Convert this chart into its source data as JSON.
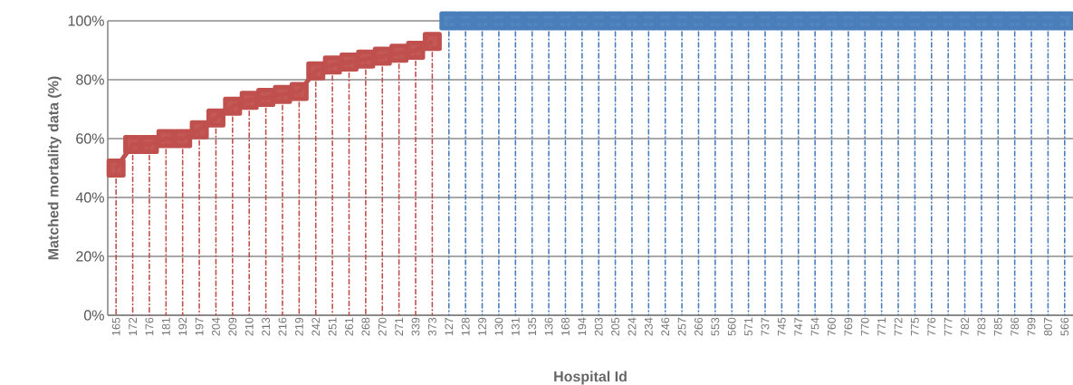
{
  "chart_data": {
    "type": "line",
    "xlabel": "Hospital Id",
    "ylabel": "Matched mortality data (%)",
    "categories": [
      "165",
      "172",
      "176",
      "181",
      "192",
      "197",
      "204",
      "209",
      "210",
      "213",
      "216",
      "219",
      "242",
      "251",
      "261",
      "268",
      "270",
      "271",
      "339",
      "373",
      "127",
      "128",
      "129",
      "130",
      "131",
      "135",
      "136",
      "168",
      "194",
      "203",
      "205",
      "224",
      "234",
      "246",
      "257",
      "266",
      "553",
      "560",
      "571",
      "737",
      "745",
      "747",
      "754",
      "760",
      "769",
      "770",
      "771",
      "772",
      "775",
      "776",
      "777",
      "782",
      "783",
      "785",
      "786",
      "799",
      "807",
      "566"
    ],
    "series": [
      {
        "color": "#c0504d",
        "values": [
          50,
          58,
          58,
          60,
          60,
          63,
          67,
          71,
          73,
          74,
          75,
          76,
          83,
          85,
          86,
          87,
          88,
          89,
          90,
          93,
          null,
          null,
          null,
          null,
          null,
          null,
          null,
          null,
          null,
          null,
          null,
          null,
          null,
          null,
          null,
          null,
          null,
          null,
          null,
          null,
          null,
          null,
          null,
          null,
          null,
          null,
          null,
          null,
          null,
          null,
          null,
          null,
          null,
          null,
          null,
          null,
          null,
          null
        ],
        "errors": [
          [
            0,
            50
          ],
          [
            0,
            58
          ],
          [
            0,
            58
          ],
          [
            0,
            60
          ],
          [
            0,
            60
          ],
          [
            0,
            63
          ],
          [
            0,
            67
          ],
          [
            0,
            71
          ],
          [
            0,
            73
          ],
          [
            0,
            74
          ],
          [
            0,
            75
          ],
          [
            0,
            76
          ],
          [
            0,
            83
          ],
          [
            0,
            85
          ],
          [
            0,
            86
          ],
          [
            0,
            87
          ],
          [
            0,
            88
          ],
          [
            0,
            89
          ],
          [
            0,
            90
          ],
          [
            0,
            93
          ],
          null,
          null,
          null,
          null,
          null,
          null,
          null,
          null,
          null,
          null,
          null,
          null,
          null,
          null,
          null,
          null,
          null,
          null,
          null,
          null,
          null,
          null,
          null,
          null,
          null,
          null,
          null,
          null,
          null,
          null,
          null,
          null,
          null,
          null,
          null,
          null,
          null,
          null
        ]
      },
      {
        "color": "#4a7ebb",
        "values": [
          null,
          null,
          null,
          null,
          null,
          null,
          null,
          null,
          null,
          null,
          null,
          null,
          null,
          null,
          null,
          null,
          null,
          null,
          null,
          null,
          100,
          100,
          100,
          100,
          100,
          100,
          100,
          100,
          100,
          100,
          100,
          100,
          100,
          100,
          100,
          100,
          100,
          100,
          100,
          100,
          100,
          100,
          100,
          100,
          100,
          100,
          100,
          100,
          100,
          100,
          100,
          100,
          100,
          100,
          100,
          100,
          100,
          100
        ],
        "errors": [
          null,
          null,
          null,
          null,
          null,
          null,
          null,
          null,
          null,
          null,
          null,
          null,
          null,
          null,
          null,
          null,
          null,
          null,
          null,
          null,
          [
            0,
            100
          ],
          [
            0,
            100
          ],
          [
            0,
            100
          ],
          [
            0,
            100
          ],
          [
            0,
            100
          ],
          [
            0,
            100
          ],
          [
            0,
            100
          ],
          [
            0,
            100
          ],
          [
            0,
            100
          ],
          [
            0,
            100
          ],
          [
            0,
            100
          ],
          [
            0,
            100
          ],
          [
            0,
            100
          ],
          [
            0,
            100
          ],
          [
            0,
            100
          ],
          [
            0,
            100
          ],
          [
            0,
            100
          ],
          [
            0,
            100
          ],
          [
            0,
            100
          ],
          [
            0,
            100
          ],
          [
            0,
            100
          ],
          [
            0,
            100
          ],
          [
            0,
            100
          ],
          [
            0,
            100
          ],
          [
            0,
            100
          ],
          [
            0,
            100
          ],
          [
            0,
            100
          ],
          [
            0,
            100
          ],
          [
            0,
            100
          ],
          [
            0,
            100
          ],
          [
            0,
            100
          ],
          [
            0,
            100
          ],
          [
            0,
            100
          ],
          [
            0,
            100
          ],
          [
            0,
            100
          ],
          [
            0,
            100
          ],
          [
            0,
            100
          ],
          [
            0,
            100
          ]
        ]
      }
    ],
    "ylim": [
      0,
      100
    ],
    "yticks": [
      {
        "value": 0,
        "label": "0%"
      },
      {
        "value": 20,
        "label": "20%"
      },
      {
        "value": 40,
        "label": "40%"
      },
      {
        "value": 60,
        "label": "60%"
      },
      {
        "value": 80,
        "label": "80%"
      },
      {
        "value": 100,
        "label": "100%"
      }
    ],
    "grid": "y",
    "marker": "square"
  }
}
